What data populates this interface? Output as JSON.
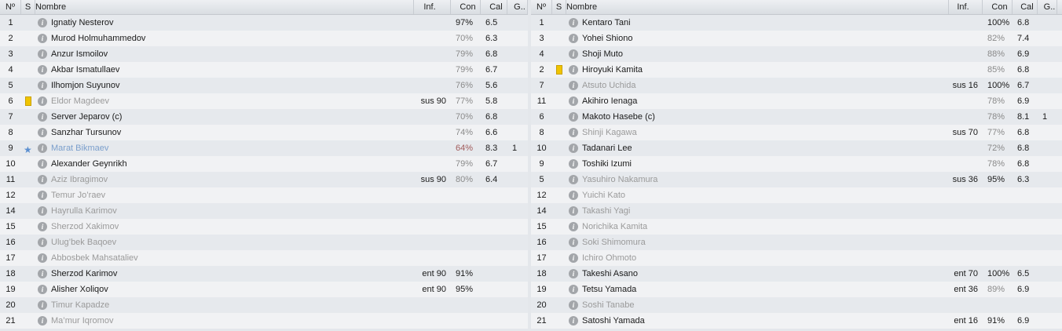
{
  "headers": {
    "no": "Nº",
    "s": "S",
    "name": "Nombre",
    "inf": "Inf.",
    "con": "Con",
    "cal": "Cal",
    "g": "G.."
  },
  "colors": {
    "yellow_card": "#f0c400",
    "star": "#5b8fd0",
    "inactive_text": "#9a9a9a",
    "low_condition": "#8a8a8a",
    "bad_condition": "#a05a5a"
  },
  "left": [
    {
      "no": "1",
      "name": "Ignatiy Nesterov",
      "state": "active",
      "inf": "",
      "con": "97%",
      "con_state": "high",
      "cal": "6.5",
      "g": ""
    },
    {
      "no": "2",
      "name": "Murod Holmuhammedov",
      "state": "active",
      "inf": "",
      "con": "70%",
      "con_state": "low",
      "cal": "6.3",
      "g": ""
    },
    {
      "no": "3",
      "name": "Anzur Ismoilov",
      "state": "active",
      "inf": "",
      "con": "79%",
      "con_state": "low",
      "cal": "6.8",
      "g": ""
    },
    {
      "no": "4",
      "name": "Akbar Ismatullaev",
      "state": "active",
      "inf": "",
      "con": "79%",
      "con_state": "low",
      "cal": "6.7",
      "g": ""
    },
    {
      "no": "5",
      "name": "Ilhomjon Suyunov",
      "state": "active",
      "inf": "",
      "con": "76%",
      "con_state": "low",
      "cal": "5.6",
      "g": ""
    },
    {
      "no": "6",
      "icon": "yellow-card",
      "name": "Eldor Magdeev",
      "state": "inactive",
      "inf": "sus 90",
      "con": "77%",
      "con_state": "low",
      "cal": "5.8",
      "g": ""
    },
    {
      "no": "7",
      "name": "Server Jeparov (c)",
      "state": "active",
      "inf": "",
      "con": "70%",
      "con_state": "low",
      "cal": "6.8",
      "g": ""
    },
    {
      "no": "8",
      "name": "Sanzhar Tursunov",
      "state": "active",
      "inf": "",
      "con": "74%",
      "con_state": "low",
      "cal": "6.6",
      "g": ""
    },
    {
      "no": "9",
      "icon": "star",
      "name": "Marat Bikmaev",
      "state": "star",
      "inf": "",
      "con": "64%",
      "con_state": "bad",
      "cal": "8.3",
      "g": "1"
    },
    {
      "no": "10",
      "name": "Alexander Geynrikh",
      "state": "active",
      "inf": "",
      "con": "79%",
      "con_state": "low",
      "cal": "6.7",
      "g": ""
    },
    {
      "no": "11",
      "name": "Aziz Ibragimov",
      "state": "inactive",
      "inf": "sus 90",
      "con": "80%",
      "con_state": "low",
      "cal": "6.4",
      "g": ""
    },
    {
      "no": "12",
      "name": "Temur Jo’raev",
      "state": "inactive",
      "inf": "",
      "con": "",
      "cal": "",
      "g": ""
    },
    {
      "no": "14",
      "name": "Hayrulla Karimov",
      "state": "inactive",
      "inf": "",
      "con": "",
      "cal": "",
      "g": ""
    },
    {
      "no": "15",
      "name": "Sherzod Xakimov",
      "state": "inactive",
      "inf": "",
      "con": "",
      "cal": "",
      "g": ""
    },
    {
      "no": "16",
      "name": "Ulug’bek Baqoev",
      "state": "inactive",
      "inf": "",
      "con": "",
      "cal": "",
      "g": ""
    },
    {
      "no": "17",
      "name": "Abbosbek Mahsataliev",
      "state": "inactive",
      "inf": "",
      "con": "",
      "cal": "",
      "g": ""
    },
    {
      "no": "18",
      "name": "Sherzod Karimov",
      "state": "active",
      "inf": "ent 90",
      "con": "91%",
      "con_state": "high",
      "cal": "",
      "g": ""
    },
    {
      "no": "19",
      "name": "Alisher Xoliqov",
      "state": "active",
      "inf": "ent 90",
      "con": "95%",
      "con_state": "high",
      "cal": "",
      "g": ""
    },
    {
      "no": "20",
      "name": "Timur Kapadze",
      "state": "inactive",
      "inf": "",
      "con": "",
      "cal": "",
      "g": ""
    },
    {
      "no": "21",
      "name": "Ma’mur Iqromov",
      "state": "inactive",
      "inf": "",
      "con": "",
      "cal": "",
      "g": ""
    }
  ],
  "right": [
    {
      "no": "1",
      "name": "Kentaro Tani",
      "state": "active",
      "inf": "",
      "con": "100%",
      "con_state": "high",
      "cal": "6.8",
      "g": ""
    },
    {
      "no": "3",
      "name": "Yohei Shiono",
      "state": "active",
      "inf": "",
      "con": "82%",
      "con_state": "low",
      "cal": "7.4",
      "g": ""
    },
    {
      "no": "4",
      "name": "Shoji Muto",
      "state": "active",
      "inf": "",
      "con": "88%",
      "con_state": "low",
      "cal": "6.9",
      "g": ""
    },
    {
      "no": "2",
      "icon": "yellow-card",
      "name": "Hiroyuki Kamita",
      "state": "active",
      "inf": "",
      "con": "85%",
      "con_state": "low",
      "cal": "6.8",
      "g": ""
    },
    {
      "no": "7",
      "name": "Atsuto Uchida",
      "state": "inactive",
      "inf": "sus 16",
      "con": "100%",
      "con_state": "high",
      "cal": "6.7",
      "g": ""
    },
    {
      "no": "11",
      "name": "Akihiro Ienaga",
      "state": "active",
      "inf": "",
      "con": "78%",
      "con_state": "low",
      "cal": "6.9",
      "g": ""
    },
    {
      "no": "6",
      "name": "Makoto Hasebe (c)",
      "state": "active",
      "inf": "",
      "con": "78%",
      "con_state": "low",
      "cal": "8.1",
      "g": "1"
    },
    {
      "no": "8",
      "name": "Shinji Kagawa",
      "state": "inactive",
      "inf": "sus 70",
      "con": "77%",
      "con_state": "low",
      "cal": "6.8",
      "g": ""
    },
    {
      "no": "10",
      "name": "Tadanari Lee",
      "state": "active",
      "inf": "",
      "con": "72%",
      "con_state": "low",
      "cal": "6.8",
      "g": ""
    },
    {
      "no": "9",
      "name": "Toshiki Izumi",
      "state": "active",
      "inf": "",
      "con": "78%",
      "con_state": "low",
      "cal": "6.8",
      "g": ""
    },
    {
      "no": "5",
      "name": "Yasuhiro Nakamura",
      "state": "inactive",
      "inf": "sus 36",
      "con": "95%",
      "con_state": "high",
      "cal": "6.3",
      "g": ""
    },
    {
      "no": "12",
      "name": "Yuichi Kato",
      "state": "inactive",
      "inf": "",
      "con": "",
      "cal": "",
      "g": ""
    },
    {
      "no": "14",
      "name": "Takashi Yagi",
      "state": "inactive",
      "inf": "",
      "con": "",
      "cal": "",
      "g": ""
    },
    {
      "no": "15",
      "name": "Norichika Kamita",
      "state": "inactive",
      "inf": "",
      "con": "",
      "cal": "",
      "g": ""
    },
    {
      "no": "16",
      "name": "Soki Shimomura",
      "state": "inactive",
      "inf": "",
      "con": "",
      "cal": "",
      "g": ""
    },
    {
      "no": "17",
      "name": "Ichiro Ohmoto",
      "state": "inactive",
      "inf": "",
      "con": "",
      "cal": "",
      "g": ""
    },
    {
      "no": "18",
      "name": "Takeshi Asano",
      "state": "active",
      "inf": "ent 70",
      "con": "100%",
      "con_state": "high",
      "cal": "6.5",
      "g": ""
    },
    {
      "no": "19",
      "name": "Tetsu Yamada",
      "state": "active",
      "inf": "ent 36",
      "con": "89%",
      "con_state": "low",
      "cal": "6.9",
      "g": ""
    },
    {
      "no": "20",
      "name": "Soshi Tanabe",
      "state": "inactive",
      "inf": "",
      "con": "",
      "cal": "",
      "g": ""
    },
    {
      "no": "21",
      "name": "Satoshi Yamada",
      "state": "active",
      "inf": "ent 16",
      "con": "91%",
      "con_state": "high",
      "cal": "6.9",
      "g": ""
    }
  ]
}
